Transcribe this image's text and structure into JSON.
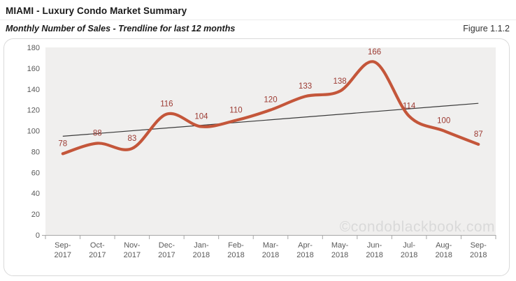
{
  "header": {
    "title": "MIAMI - Luxury Condo Market Summary",
    "subtitle": "Monthly Number of Sales - Trendline for last 12 months",
    "figure_label": "Figure 1.1.2"
  },
  "watermark": "©condoblackbook.com",
  "chart_data": {
    "type": "line",
    "title": "Monthly Number of Sales - Trendline for last 12 months",
    "categories": [
      "Sep-2017",
      "Oct-2017",
      "Nov-2017",
      "Dec-2017",
      "Jan-2018",
      "Feb-2018",
      "Mar-2018",
      "Apr-2018",
      "May-2018",
      "Jun-2018",
      "Jul-2018",
      "Aug-2018",
      "Sep-2018"
    ],
    "series": [
      {
        "name": "Monthly Number of Sales",
        "values": [
          78,
          88,
          83,
          116,
          104,
          110,
          120,
          133,
          138,
          166,
          114,
          100,
          87
        ],
        "color": "#c4563a",
        "smooth": true,
        "data_labels": true
      },
      {
        "name": "Linear Trendline",
        "trend_of": 0,
        "trend_start": 95,
        "trend_end": 126,
        "color": "#3a3a3a"
      }
    ],
    "ylim": [
      0,
      180
    ],
    "ytick_step": 20,
    "grid": false,
    "legend": "none",
    "plot_bg": "#f0efee",
    "axis_color": "#a6a6a6",
    "tick_label_color": "#595959",
    "data_label_color": "#9c3a32"
  }
}
